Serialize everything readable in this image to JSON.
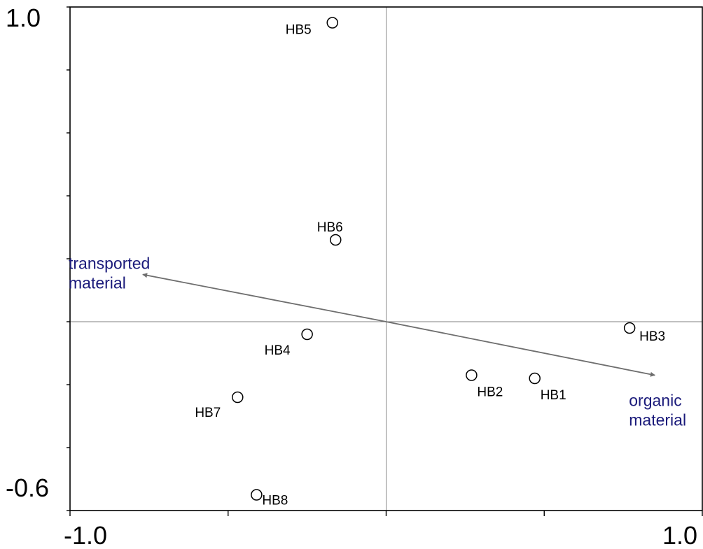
{
  "chart_data": {
    "type": "scatter",
    "title": "",
    "xlabel": "",
    "ylabel": "",
    "xlim": [
      -1.0,
      1.0
    ],
    "ylim": [
      -0.6,
      1.0
    ],
    "x_tick_labels": [
      "-1.0",
      "1.0"
    ],
    "y_tick_labels": [
      "1.0",
      "-0.6"
    ],
    "x_tick_values": [
      -1.0,
      -0.5,
      0.0,
      0.5,
      1.0
    ],
    "y_tick_values": [
      -0.6,
      -0.4,
      -0.2,
      0.0,
      0.2,
      0.4,
      0.6,
      0.8,
      1.0
    ],
    "grid": false,
    "zero_lines": true,
    "points": [
      {
        "label": "HB1",
        "x": 0.47,
        "y": -0.18
      },
      {
        "label": "HB2",
        "x": 0.27,
        "y": -0.17
      },
      {
        "label": "HB3",
        "x": 0.77,
        "y": -0.02
      },
      {
        "label": "HB4",
        "x": -0.25,
        "y": -0.04
      },
      {
        "label": "HB5",
        "x": -0.17,
        "y": 0.95
      },
      {
        "label": "HB6",
        "x": -0.16,
        "y": 0.26
      },
      {
        "label": "HB7",
        "x": -0.47,
        "y": -0.24
      },
      {
        "label": "HB8",
        "x": -0.41,
        "y": -0.55
      }
    ],
    "vectors": [
      {
        "label_lines": [
          "transported",
          "material"
        ],
        "x": -0.77,
        "y": 0.15,
        "color": "#1a1a7a"
      },
      {
        "label_lines": [
          "organic",
          "material"
        ],
        "x": 0.85,
        "y": -0.17,
        "color": "#1a1a7a"
      }
    ],
    "colors": {
      "marker_stroke": "#000000",
      "vector": "#6e6e6e",
      "vector_label": "#1a1a7a",
      "zero_line": "#808080"
    }
  }
}
